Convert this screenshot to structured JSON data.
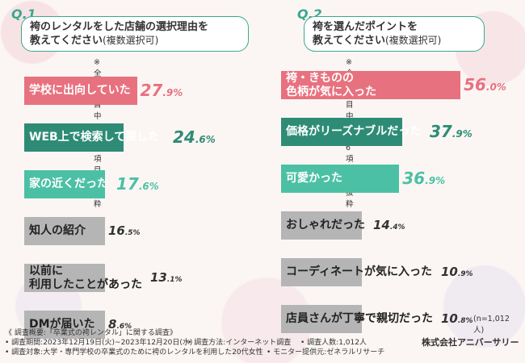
{
  "chart_data": [
    {
      "type": "bar",
      "qnum": "Q.1",
      "title_line1": "袴のレンタルをした店舗の選択理由を",
      "title_line2": "教えてください",
      "title_sub": "(複数選択可)",
      "note": "※全9項目中上位6項目を抜粋",
      "categories": [
        "学校に出向していた",
        "WEB上で検索して探した",
        "家の近くだった",
        "知人の紹介",
        "以前に\n利用したことがあった",
        "DMが届いた"
      ],
      "values": [
        27.9,
        24.6,
        17.6,
        16.5,
        13.1,
        8.6
      ],
      "value_labels": [
        "27.9%",
        "24.6%",
        "17.6%",
        "16.5%",
        "13.1%",
        "8.6%"
      ],
      "colors": [
        "#e8717f",
        "#2e8c76",
        "#4cc0a4",
        "#b5b5b5",
        "#b5b5b5",
        "#b5b5b5"
      ]
    },
    {
      "type": "bar",
      "qnum": "Q.2",
      "title_line1": "袴を選んだポイントを",
      "title_line2": "教えてください",
      "title_sub": "(複数選択可)",
      "note": "※全9項目中上位6項目を抜粋",
      "categories": [
        "袴・きものの\n色柄が気に入った",
        "価格がリーズナブルだった",
        "可愛かった",
        "おしゃれだった",
        "コーディネートが気に入った",
        "店員さんが丁寧で親切だった"
      ],
      "values": [
        56.0,
        37.9,
        36.9,
        14.4,
        10.9,
        10.8
      ],
      "value_labels": [
        "56.0%",
        "37.9%",
        "36.9%",
        "14.4%",
        "10.9%",
        "10.8%"
      ],
      "colors": [
        "#e8717f",
        "#2e8c76",
        "#4cc0a4",
        "#b5b5b5",
        "#b5b5b5",
        "#b5b5b5"
      ],
      "n_label": "(n=1,012人)"
    }
  ],
  "footer": {
    "line1": "《 調査概要:「卒業式の袴レンタル」に関する調査》",
    "period": "• 調査期間:2023年12月19日(火)~2023年12月20日(水)",
    "method": "• 調査方法:インターネット調査",
    "count": "• 調査人数:1,012人",
    "target": "• 調査対象:大学・専門学校の卒業式のために袴のレンタルを利用した20代女性",
    "monitor": "• モニター提供元:ゼネラルリサーチ",
    "company": "株式会社アニバーサリー"
  }
}
